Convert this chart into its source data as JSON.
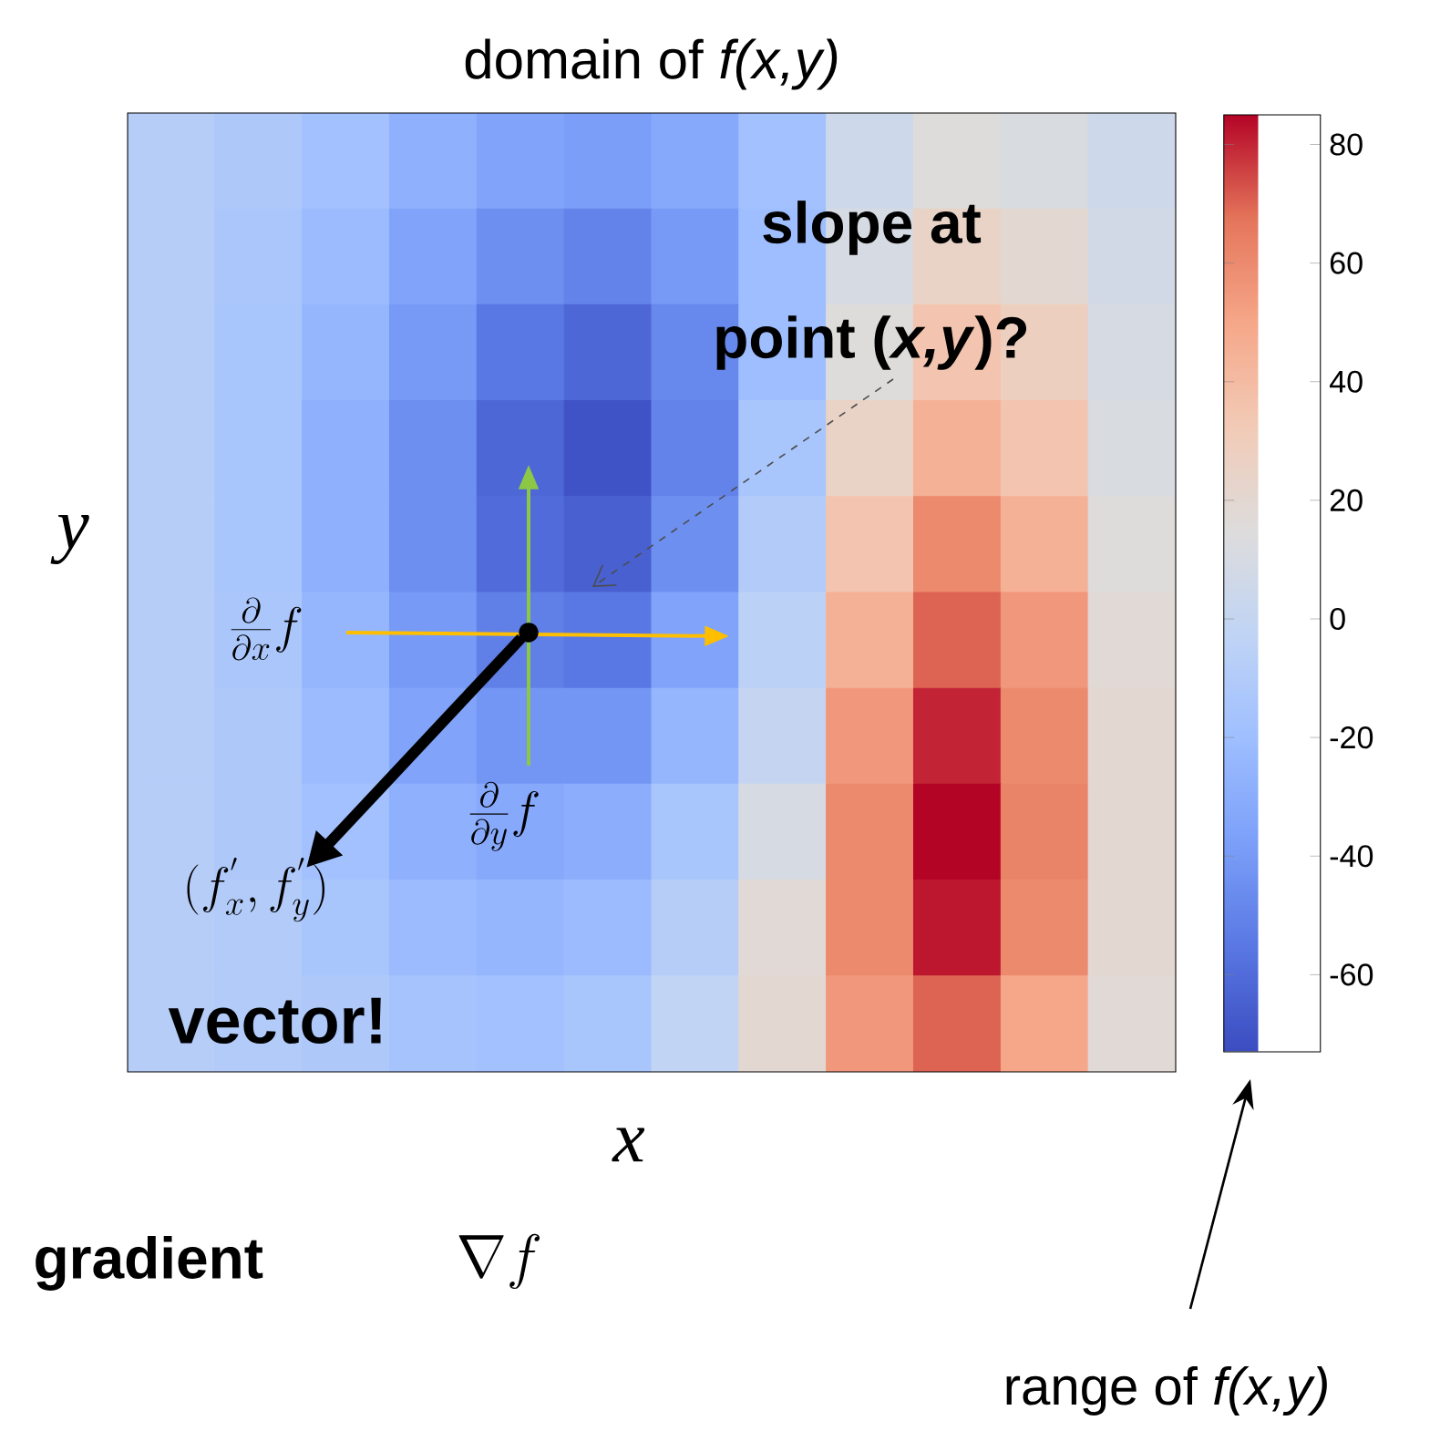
{
  "chart_data": {
    "type": "heatmap",
    "title": "domain of *f(x,y)*",
    "xlabel": "x",
    "ylabel": "y",
    "categories": [
      null,
      null,
      null,
      null,
      null,
      null,
      null,
      null,
      null,
      null,
      null,
      null
    ],
    "y_categories": [
      null,
      null,
      null,
      null,
      null,
      null,
      null,
      null,
      null,
      null
    ],
    "cells": [
      [
        -8,
        -12,
        -18,
        -28,
        -35,
        -38,
        -32,
        -18,
        5,
        15,
        12,
        5
      ],
      [
        -8,
        -14,
        -22,
        -35,
        -45,
        -50,
        -40,
        -20,
        10,
        25,
        20,
        8
      ],
      [
        -8,
        -15,
        -25,
        -40,
        -55,
        -62,
        -48,
        -20,
        15,
        35,
        28,
        10
      ],
      [
        -8,
        -15,
        -28,
        -45,
        -62,
        -70,
        -50,
        -15,
        25,
        45,
        35,
        12
      ],
      [
        -8,
        -15,
        -28,
        -45,
        -60,
        -65,
        -45,
        -10,
        35,
        60,
        45,
        15
      ],
      [
        -8,
        -14,
        -25,
        -40,
        -52,
        -55,
        -35,
        -5,
        45,
        70,
        55,
        18
      ],
      [
        -8,
        -12,
        -22,
        -35,
        -42,
        -42,
        -25,
        0,
        55,
        80,
        60,
        20
      ],
      [
        -8,
        -12,
        -18,
        -28,
        -32,
        -30,
        -15,
        10,
        60,
        85,
        62,
        20
      ],
      [
        -8,
        -10,
        -15,
        -22,
        -25,
        -22,
        -8,
        18,
        60,
        82,
        60,
        20
      ],
      [
        -8,
        -10,
        -12,
        -16,
        -18,
        -15,
        -2,
        20,
        55,
        70,
        50,
        18
      ]
    ],
    "clim": [
      -73,
      85
    ],
    "cticks": [
      -60,
      -40,
      -20,
      0,
      20,
      40,
      60,
      80
    ],
    "annotations": [
      "slope at",
      "point (*x,y*)?",
      "\\frac{\\partial}{\\partial x} f",
      "\\frac{\\partial}{\\partial y} f",
      "(f^{'}_{x}, f^{'}_{y})",
      "vector!",
      "gradient",
      "\\nabla f",
      "range of *f(x,y)*"
    ]
  }
}
